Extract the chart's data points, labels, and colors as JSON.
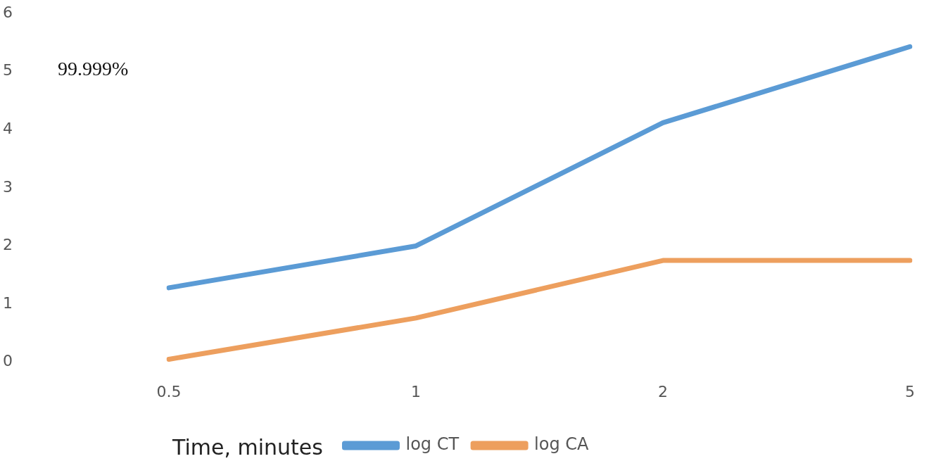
{
  "chart_data": {
    "type": "line",
    "xlabel": "Time, minutes",
    "annotations": [
      "99.999%"
    ],
    "categories": [
      "0.5",
      "1",
      "2",
      "5"
    ],
    "series": [
      {
        "name": "log CT",
        "color": "#5b9bd5",
        "values": [
          1.28,
          2.0,
          4.12,
          5.43
        ]
      },
      {
        "name": "log CA",
        "color": "#ed9f5e",
        "values": [
          0.05,
          0.76,
          1.75,
          1.75
        ]
      }
    ],
    "ylim": [
      0,
      6
    ],
    "yticks": [
      0,
      1,
      2,
      3,
      4,
      5,
      6
    ],
    "grid": false,
    "legend": "bottom",
    "marker": "none",
    "line_style": "solid"
  }
}
